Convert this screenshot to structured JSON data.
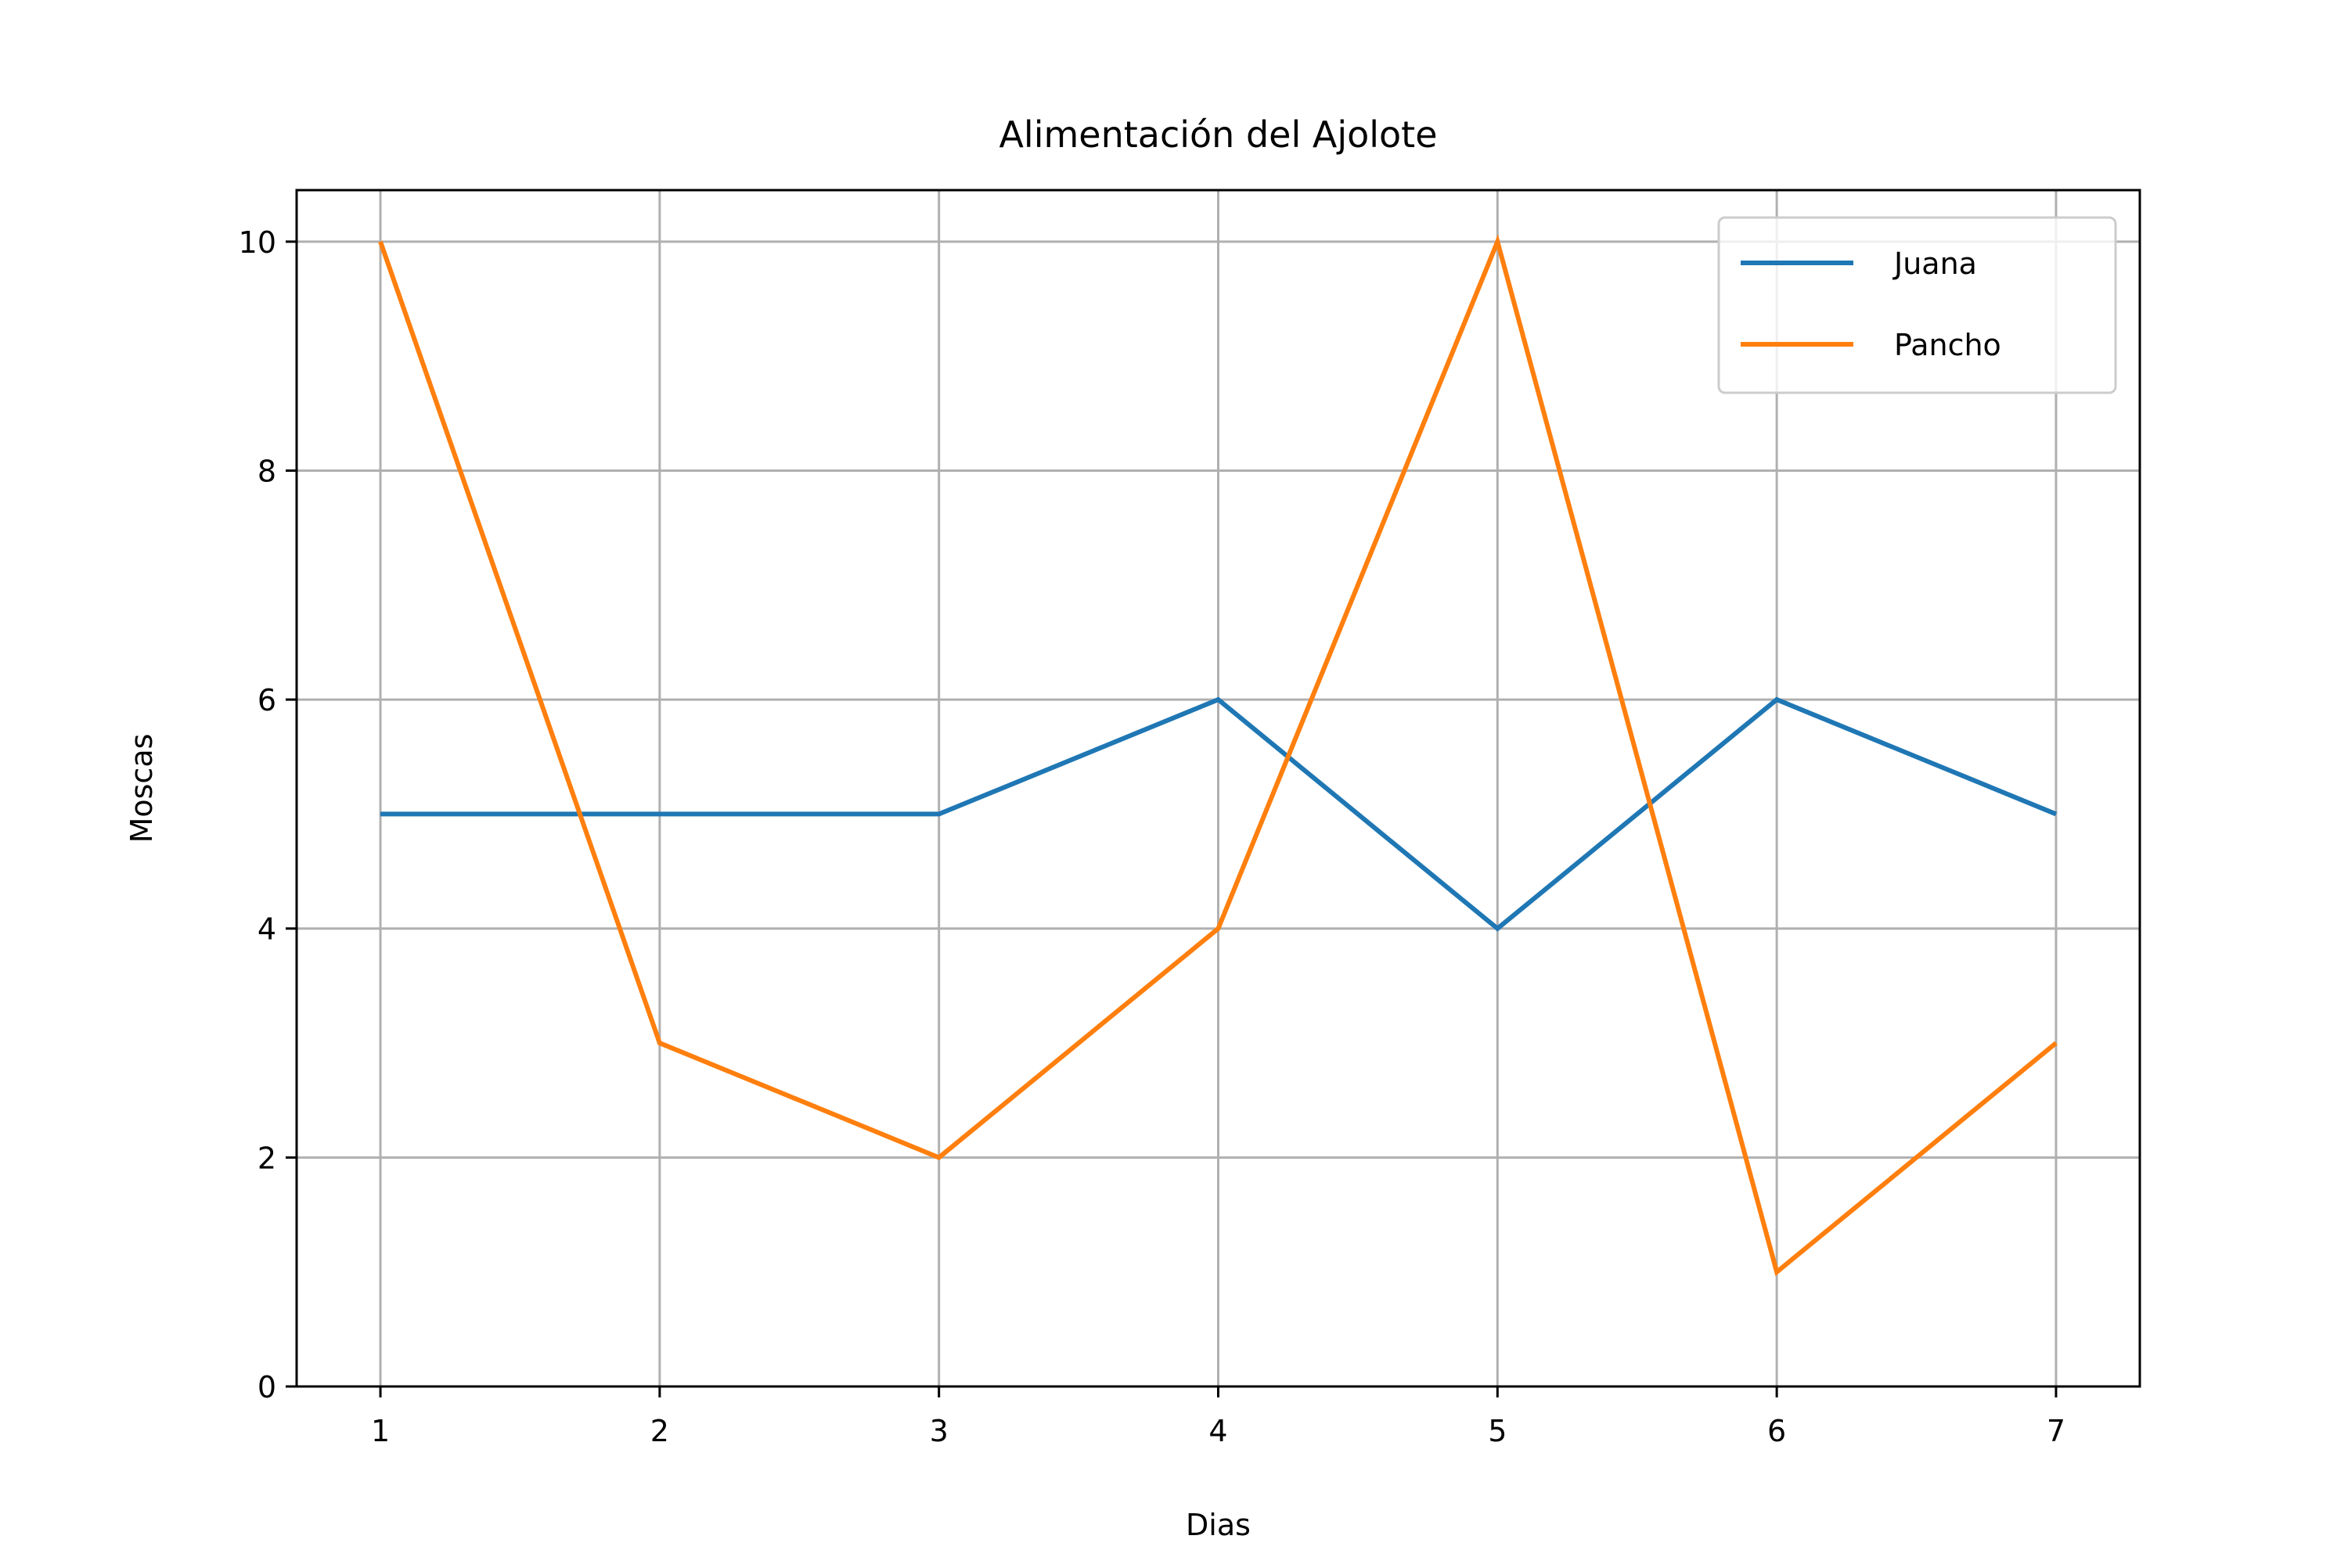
{
  "chart_data": {
    "type": "line",
    "title": "Alimentación del Ajolote",
    "xlabel": "Dias",
    "ylabel": "Moscas",
    "x": [
      1,
      2,
      3,
      4,
      5,
      6,
      7
    ],
    "xticks": [
      "1",
      "2",
      "3",
      "4",
      "5",
      "6",
      "7"
    ],
    "yticks": [
      "0",
      "2",
      "4",
      "6",
      "8",
      "10"
    ],
    "xlim": [
      0.7,
      7.3
    ],
    "ylim": [
      0,
      10.45
    ],
    "grid": true,
    "legend_position": "top-right",
    "series": [
      {
        "name": "Juana",
        "values": [
          5,
          5,
          5,
          6,
          4,
          6,
          5
        ],
        "color": "#1f77b4"
      },
      {
        "name": "Pancho",
        "values": [
          10,
          3,
          2,
          4,
          10,
          1,
          3
        ],
        "color": "#ff7f0e"
      }
    ]
  }
}
